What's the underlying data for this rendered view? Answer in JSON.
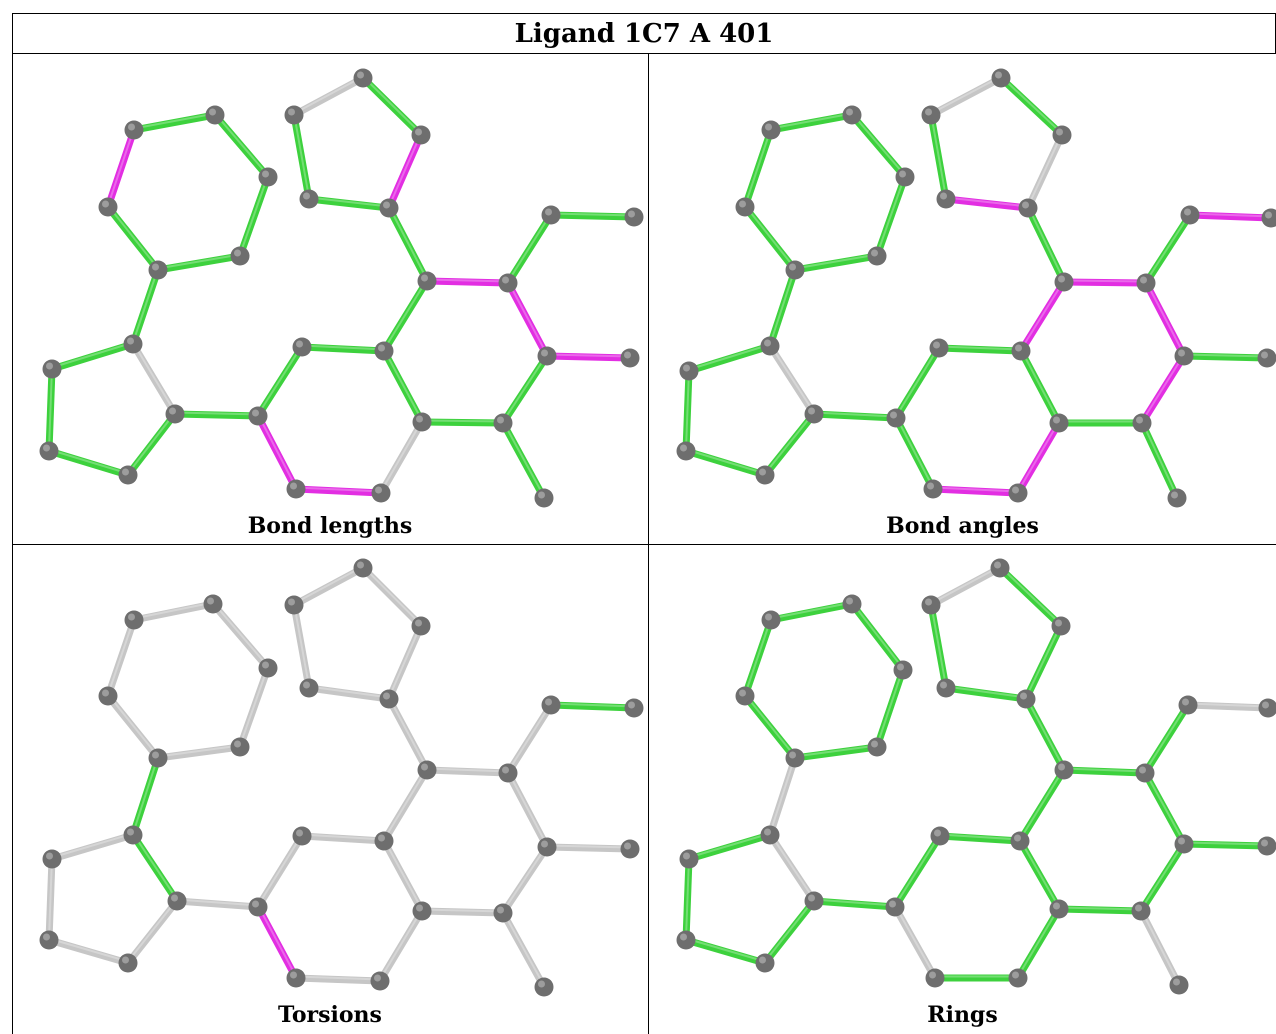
{
  "title": "Ligand 1C7 A 401",
  "colors": {
    "green": "#3dd13d",
    "magenta": "#e22ee2",
    "gray": "#c6c6c6",
    "atom": "#6e6e6e"
  },
  "panels": [
    {
      "id": "bond-lengths",
      "label": "Bond lengths",
      "bond_colors": [
        "green",
        "green",
        "green",
        "green",
        "green",
        "magenta",
        "green",
        "green",
        "green",
        "green",
        "green",
        "gray",
        "green",
        "green",
        "green",
        "green",
        "gray",
        "magenta",
        "magenta",
        "green",
        "magenta",
        "magenta",
        "green",
        "green",
        "green",
        "green",
        "green",
        "gray",
        "green",
        "magenta",
        "green",
        "green",
        "magenta",
        "green",
        "green",
        "magenta",
        "green"
      ]
    },
    {
      "id": "bond-angles",
      "label": "Bond angles",
      "bond_colors": [
        "green",
        "green",
        "green",
        "green",
        "green",
        "green",
        "green",
        "green",
        "green",
        "green",
        "green",
        "gray",
        "green",
        "green",
        "green",
        "green",
        "magenta",
        "magenta",
        "green",
        "magenta",
        "magenta",
        "magenta",
        "magenta",
        "green",
        "green",
        "magenta",
        "green",
        "gray",
        "green",
        "gray",
        "green",
        "magenta",
        "green",
        "green",
        "green",
        "magenta",
        "green"
      ]
    },
    {
      "id": "torsions",
      "label": "Torsions",
      "bond_colors": [
        "gray",
        "gray",
        "gray",
        "gray",
        "gray",
        "gray",
        "green",
        "gray",
        "gray",
        "gray",
        "gray",
        "green",
        "gray",
        "gray",
        "gray",
        "gray",
        "gray",
        "gray",
        "magenta",
        "gray",
        "gray",
        "gray",
        "gray",
        "gray",
        "gray",
        "gray",
        "gray",
        "gray",
        "gray",
        "gray",
        "gray",
        "green",
        "gray",
        "gray",
        "gray",
        "gray",
        "gray"
      ]
    },
    {
      "id": "rings",
      "label": "Rings",
      "bond_colors": [
        "green",
        "green",
        "green",
        "green",
        "green",
        "green",
        "gray",
        "green",
        "green",
        "green",
        "green",
        "gray",
        "green",
        "green",
        "green",
        "green",
        "green",
        "green",
        "gray",
        "green",
        "green",
        "green",
        "green",
        "green",
        "green",
        "green",
        "green",
        "gray",
        "green",
        "green",
        "green",
        "gray",
        "green",
        "gray",
        "green",
        "gray",
        "gray"
      ]
    }
  ]
}
